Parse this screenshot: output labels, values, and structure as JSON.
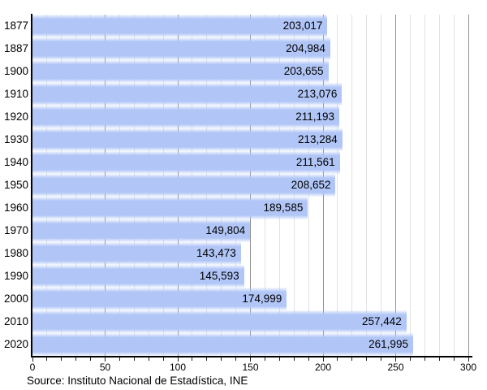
{
  "chart_data": {
    "type": "bar",
    "orientation": "horizontal",
    "title": "",
    "categories": [
      "1877",
      "1887",
      "1900",
      "1910",
      "1920",
      "1930",
      "1940",
      "1950",
      "1960",
      "1970",
      "1980",
      "1990",
      "2000",
      "2010",
      "2020"
    ],
    "values": [
      203017,
      204984,
      203655,
      213076,
      211193,
      213284,
      211561,
      208652,
      189585,
      149804,
      143473,
      145593,
      174999,
      257442,
      261995
    ],
    "value_labels": [
      "203,017",
      "204,984",
      "203,655",
      "213,076",
      "211,193",
      "213,284",
      "211,561",
      "208,652",
      "189,585",
      "149,804",
      "143,473",
      "145,593",
      "174,999",
      "257,442",
      "261,995"
    ],
    "x_ticks": [
      0,
      50,
      100,
      150,
      200,
      250,
      300
    ],
    "x_minor_step": 10,
    "x_range": [
      0,
      300
    ],
    "grid": "on",
    "legend": "none",
    "bar_color": "#b1c6f7",
    "grid_minor_color": "#e2e2e2",
    "grid_major_color": "#8f8f8f",
    "axis_color": "#000000",
    "text_color": "#000000",
    "source": "Source: Instituto Nacional de Estadística, INE"
  }
}
